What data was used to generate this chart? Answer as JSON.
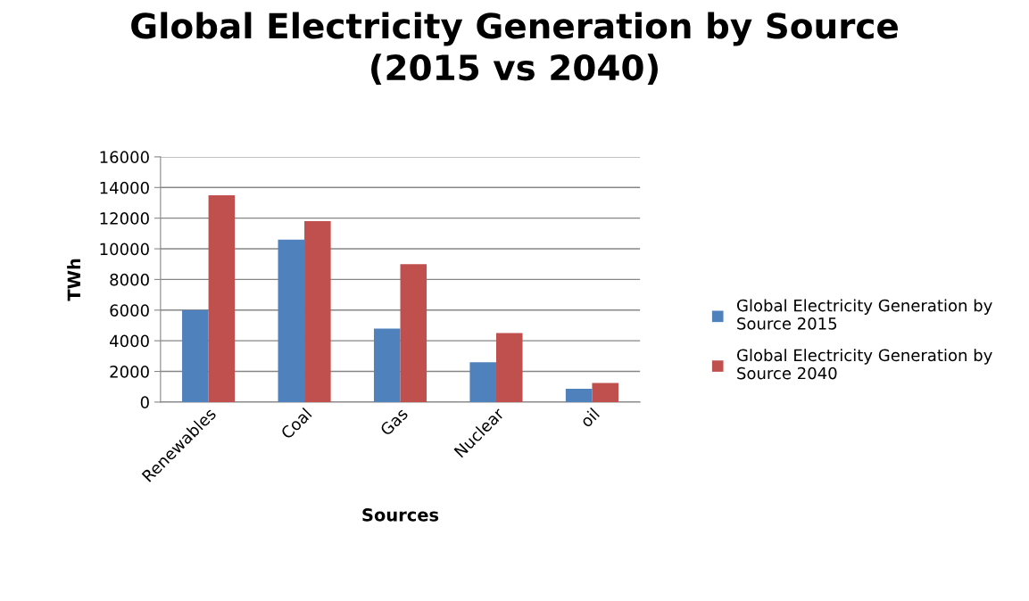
{
  "chart_data": {
    "type": "bar",
    "title": "Global Electricity Generation by Source\n(2015 vs 2040)",
    "xlabel": "Sources",
    "ylabel": "TWh",
    "categories": [
      "Renewables",
      "Coal",
      "Gas",
      "Nuclear",
      "oil"
    ],
    "series": [
      {
        "name": "Global Electricity Generation by\nSource 2015",
        "color": "#4f81bd",
        "values": [
          6000,
          10600,
          4800,
          2600,
          870
        ]
      },
      {
        "name": "Global Electricity Generation by\nSource 2040",
        "color": "#c0504d",
        "values": [
          13500,
          11800,
          9000,
          4500,
          1250
        ]
      }
    ],
    "ylim": [
      0,
      16000
    ],
    "yticks": [
      0,
      2000,
      4000,
      6000,
      8000,
      10000,
      12000,
      14000,
      16000
    ],
    "grid": "y",
    "legend": "right"
  }
}
